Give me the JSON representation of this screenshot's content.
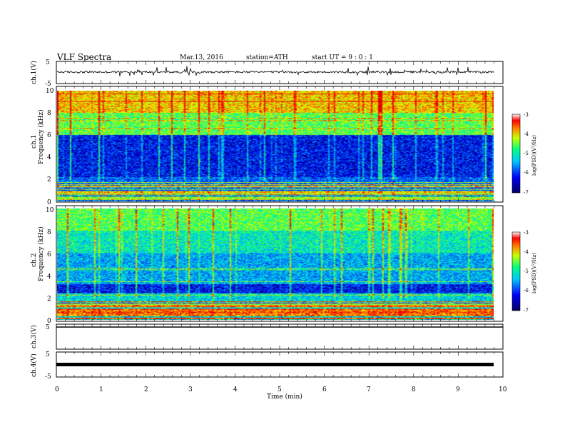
{
  "header": {
    "title": "VLF  Spectra",
    "date": "Mar.13, 2016",
    "station": "station=ATH",
    "start": "start  UT  =   9  : 0   : 1"
  },
  "chart_data": {
    "type": "heatmap",
    "x_axis": {
      "label": "Time  (min)",
      "range": [
        0,
        10
      ],
      "ticks": [
        "0",
        "1",
        "2",
        "3",
        "4",
        "5",
        "6",
        "7",
        "8",
        "9",
        "10"
      ]
    },
    "panels": [
      {
        "id": "ch1-waveform",
        "type": "line",
        "ylabel": "ch.1(V)",
        "ylim": [
          -5,
          5
        ],
        "yticks": [
          "5",
          "-5"
        ],
        "baseline": 0.2,
        "data_end_min": 9.8
      },
      {
        "id": "ch1-spectrogram",
        "type": "heatmap",
        "ylabel_top": "ch.1",
        "ylabel": "Frequency  (kHz)",
        "ylim": [
          0,
          10
        ],
        "yticks": [
          "0",
          "2",
          "4",
          "6",
          "8",
          "10"
        ],
        "colorbar": {
          "label": "log(PSD)(V²/Hz)",
          "range": [
            -7,
            -3
          ],
          "ticks": [
            "-3",
            "-4",
            "-5",
            "-6",
            "-7"
          ]
        }
      },
      {
        "id": "ch2-spectrogram",
        "type": "heatmap",
        "ylabel_top": "ch.2",
        "ylabel": "Frequency  (kHz)",
        "ylim": [
          0,
          10
        ],
        "yticks": [
          "0",
          "2",
          "4",
          "6",
          "8",
          "10"
        ],
        "colorbar": {
          "label": "log(PSD)(V²/Hz)",
          "range": [
            -7,
            -3
          ],
          "ticks": [
            "-3",
            "-4",
            "-5",
            "-6",
            "-7"
          ]
        }
      },
      {
        "id": "ch3-waveform",
        "type": "line",
        "ylabel": "ch.3(V)",
        "yticks": [
          "5"
        ]
      },
      {
        "id": "ch4-waveform",
        "type": "line",
        "ylabel": "ch.4(V)",
        "ylim": [
          -5,
          5
        ],
        "yticks": [
          "5",
          "-5"
        ],
        "baseline": -0.3,
        "data_end_min": 9.8
      }
    ]
  }
}
